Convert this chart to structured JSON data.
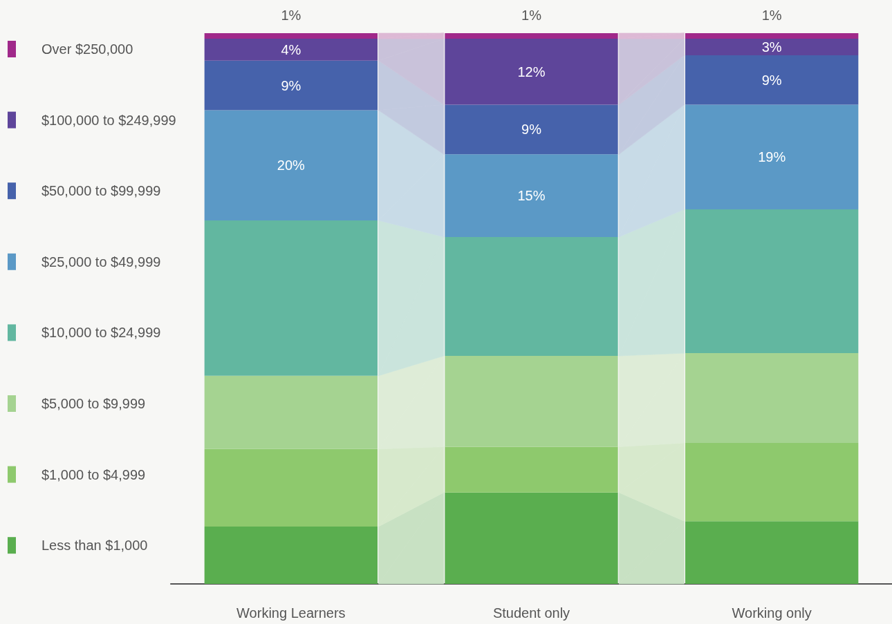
{
  "chart_data": {
    "type": "bar",
    "stacked": true,
    "categories": [
      "Working Learners",
      "Student only",
      "Working only"
    ],
    "ylim": [
      0,
      100
    ],
    "tick_labels": "x",
    "legend": "left",
    "series": [
      {
        "name": "Less than $1,000",
        "color": "#5aae4f",
        "values": [
          10.4,
          16.6,
          11.4
        ]
      },
      {
        "name": "$1,000 to $4,999",
        "color": "#8ec96d",
        "values": [
          14.1,
          8.3,
          14.2
        ]
      },
      {
        "name": "$5,000 to $9,999",
        "color": "#a5d391",
        "values": [
          13.3,
          16.5,
          16.3
        ]
      },
      {
        "name": "$10,000 to $24,999",
        "color": "#62b7a0",
        "values": [
          28.2,
          21.6,
          26.1
        ]
      },
      {
        "name": "$25,000 to $49,999",
        "color": "#5b99c6",
        "values": [
          20,
          15,
          19
        ],
        "value_labels": [
          "20%",
          "15%",
          "19%"
        ]
      },
      {
        "name": "$50,000 to $99,999",
        "color": "#4662ab",
        "values": [
          9,
          9,
          9
        ],
        "value_labels": [
          "9%",
          "9%",
          "9%"
        ]
      },
      {
        "name": "$100,000 to $249,999",
        "color": "#5e459a",
        "values": [
          4,
          12,
          3
        ],
        "value_labels": [
          "4%",
          "12%",
          "3%"
        ]
      },
      {
        "name": "Over $250,000",
        "color": "#a0298a",
        "values": [
          1,
          1,
          1
        ],
        "value_labels": [
          "1%",
          "1%",
          "1%"
        ]
      }
    ]
  }
}
